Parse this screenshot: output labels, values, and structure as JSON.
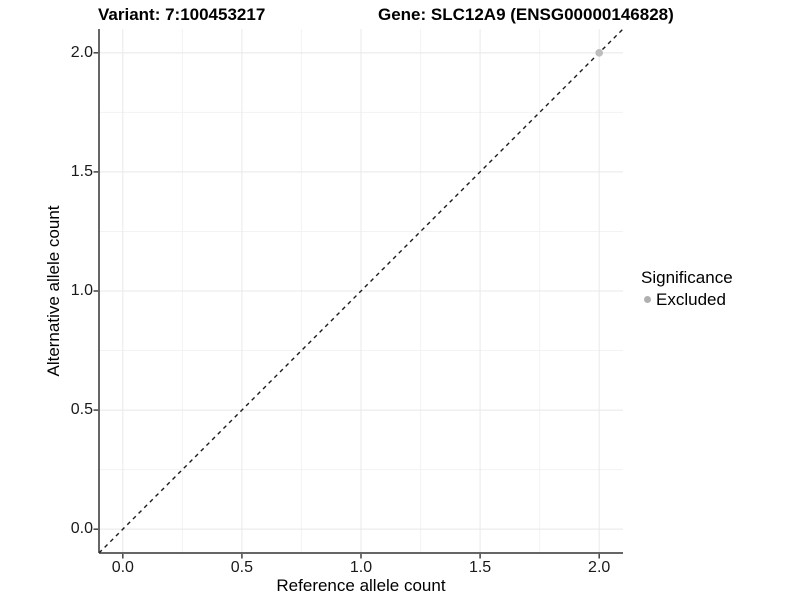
{
  "header": {
    "variant_title": "Variant: 7:100453217",
    "gene_title": "Gene: SLC12A9 (ENSG00000146828)"
  },
  "chart_data": {
    "type": "scatter",
    "xlabel": "Reference allele count",
    "ylabel": "Alternative allele count",
    "xlim": [
      -0.1,
      2.1
    ],
    "ylim": [
      -0.1,
      2.1
    ],
    "x_major_ticks": [
      0,
      0.5,
      1,
      1.5,
      2
    ],
    "x_tick_labels": [
      "0.0",
      "0.5",
      "1.0",
      "1.5",
      "2.0"
    ],
    "x_minor_ticks": [
      0.25,
      0.75,
      1.25,
      1.75
    ],
    "y_major_ticks": [
      0,
      0.5,
      1,
      1.5,
      2
    ],
    "y_tick_labels": [
      "0.0",
      "0.5",
      "1.0",
      "1.5",
      "2.0"
    ],
    "y_minor_ticks": [
      0.25,
      0.75,
      1.25,
      1.75
    ],
    "grid": "major+minor",
    "reference_line": {
      "type": "abline",
      "slope": 1,
      "intercept": 0,
      "style": "dashed",
      "color": "#1a1a1a"
    },
    "series": [
      {
        "name": "Excluded",
        "color": "#bdbdbd",
        "points": [
          {
            "x": 2.0,
            "y": 2.0
          }
        ]
      }
    ],
    "legend": {
      "title": "Significance",
      "position": "right",
      "entries": [
        {
          "label": "Excluded",
          "color": "#b0b0b0",
          "marker": "circle"
        }
      ]
    }
  },
  "colors": {
    "grid_major": "#e8e8e8",
    "grid_minor": "#f3f3f3",
    "axis_line": "#333333",
    "tick_mark": "#333333",
    "point_fill": "#bdbdbd"
  }
}
